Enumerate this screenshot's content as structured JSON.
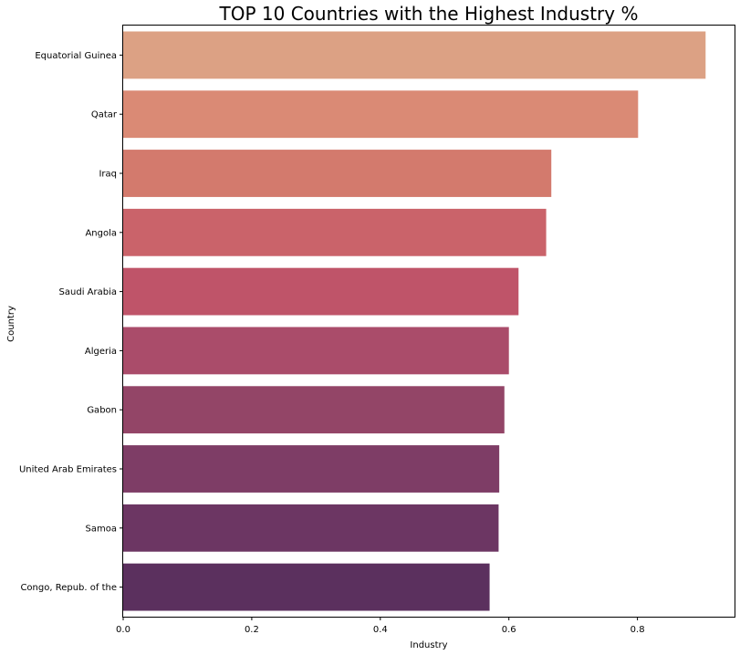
{
  "chart_data": {
    "type": "bar",
    "orientation": "horizontal",
    "title": "TOP 10 Countries with the Highest Industry %",
    "xlabel": "Industry",
    "ylabel": "Country",
    "categories": [
      "Equatorial Guinea",
      "Qatar",
      "Iraq",
      "Angola",
      "Saudi Arabia",
      "Algeria",
      "Gabon",
      "United Arab Emirates",
      "Samoa",
      "Congo, Repub. of the"
    ],
    "values": [
      0.906,
      0.801,
      0.666,
      0.658,
      0.615,
      0.6,
      0.593,
      0.585,
      0.584,
      0.57
    ],
    "xlim": [
      0,
      0.951
    ],
    "xticks": [
      0,
      0.2,
      0.4,
      0.6,
      0.8
    ],
    "xtick_labels": [
      "0.0",
      "0.2",
      "0.4",
      "0.6",
      "0.8"
    ],
    "grid": false,
    "colors": [
      "#dca184",
      "#da8a75",
      "#d37a6d",
      "#ca636a",
      "#bf5469",
      "#aa4c6a",
      "#934567",
      "#7e3d66",
      "#6c3663",
      "#5b305e"
    ]
  }
}
